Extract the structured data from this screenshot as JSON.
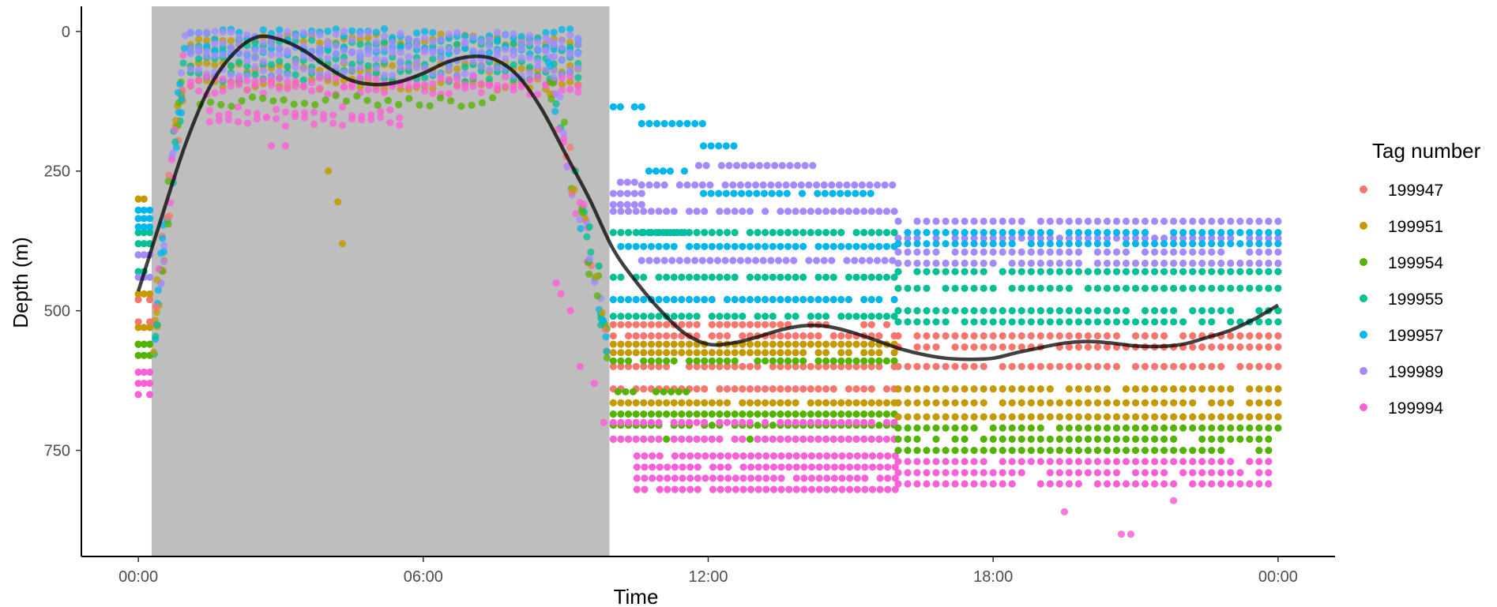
{
  "chart_data": {
    "type": "scatter",
    "xlabel": "Time",
    "ylabel": "Depth (m)",
    "x_unit": "hours",
    "xlim": [
      -1.2,
      25.2
    ],
    "ylim": [
      940,
      -45
    ],
    "y_reversed": true,
    "x_ticks": [
      {
        "value": 0,
        "label": "00:00"
      },
      {
        "value": 6,
        "label": "06:00"
      },
      {
        "value": 12,
        "label": "12:00"
      },
      {
        "value": 18,
        "label": "18:00"
      },
      {
        "value": 24,
        "label": "00:00"
      }
    ],
    "y_ticks": [
      {
        "value": 0,
        "label": "0"
      },
      {
        "value": 250,
        "label": "250"
      },
      {
        "value": 500,
        "label": "500"
      },
      {
        "value": 750,
        "label": "750"
      }
    ],
    "grid": false,
    "legend_position": "right",
    "legend_title": "Tag number",
    "daylight_band": {
      "x_start": 0.28,
      "x_end": 9.92,
      "color": "#bebebe"
    },
    "smooth_line": {
      "color": "#000000",
      "x": [
        0,
        0.5,
        1,
        1.5,
        2,
        2.5,
        3,
        3.5,
        4,
        4.5,
        5,
        5.5,
        6,
        6.5,
        7,
        7.5,
        8,
        8.5,
        9,
        9.5,
        10,
        10.5,
        11,
        11.5,
        12,
        12.5,
        13,
        13.5,
        14,
        14.5,
        15,
        15.5,
        16,
        16.5,
        17,
        17.5,
        18,
        18.5,
        19,
        19.5,
        20,
        20.5,
        21,
        21.5,
        22,
        22.5,
        23,
        23.5,
        24
      ],
      "y": [
        465,
        330,
        200,
        100,
        40,
        10,
        15,
        35,
        65,
        88,
        95,
        90,
        75,
        55,
        45,
        50,
        80,
        140,
        220,
        300,
        390,
        450,
        500,
        540,
        560,
        558,
        548,
        535,
        527,
        528,
        538,
        552,
        567,
        578,
        585,
        587,
        585,
        575,
        566,
        558,
        555,
        558,
        563,
        564,
        560,
        548,
        535,
        515,
        490
      ]
    },
    "series": [
      {
        "name": "199947",
        "color": "#F8766D"
      },
      {
        "name": "199951",
        "color": "#C49A00"
      },
      {
        "name": "199954",
        "color": "#53B400"
      },
      {
        "name": "199955",
        "color": "#00C094"
      },
      {
        "name": "199957",
        "color": "#00B6EB"
      },
      {
        "name": "199989",
        "color": "#A58AFF"
      },
      {
        "name": "199994",
        "color": "#FB61D7"
      }
    ],
    "bands": [
      {
        "s": 0,
        "x0": 0,
        "x1": 0.25,
        "depths": [
          480,
          520,
          560
        ],
        "gap": 0.12
      },
      {
        "s": 1,
        "x0": 0,
        "x1": 0.25,
        "depths": [
          300,
          400,
          470,
          530
        ],
        "gap": 0.12
      },
      {
        "s": 2,
        "x0": 0,
        "x1": 0.25,
        "depths": [
          560,
          580
        ],
        "gap": 0.12
      },
      {
        "s": 3,
        "x0": 0,
        "x1": 0.25,
        "depths": [
          360,
          380,
          430
        ],
        "gap": 0.12
      },
      {
        "s": 4,
        "x0": 0,
        "x1": 0.25,
        "depths": [
          320,
          335,
          350
        ],
        "gap": 0.12
      },
      {
        "s": 5,
        "x0": 0,
        "x1": 0.25,
        "depths": [
          400,
          440
        ],
        "gap": 0.12
      },
      {
        "s": 6,
        "x0": 0,
        "x1": 0.25,
        "depths": [
          610,
          630,
          650
        ],
        "gap": 0.12
      },
      {
        "s": 1,
        "x0": 1.1,
        "x1": 9.4,
        "depths": [
          15,
          65,
          95
        ],
        "gap": 0.17
      },
      {
        "s": 3,
        "x0": 1.1,
        "x1": 9.4,
        "depths": [
          25,
          55,
          80
        ],
        "gap": 0.17
      },
      {
        "s": 4,
        "x0": 1.1,
        "x1": 9.4,
        "depths": [
          5,
          35
        ],
        "gap": 0.17
      },
      {
        "s": 5,
        "x0": 1.1,
        "x1": 9.4,
        "depths": [
          10,
          30,
          45,
          70
        ],
        "gap": 0.17
      },
      {
        "s": 6,
        "x0": 1.1,
        "x1": 9.4,
        "depths": [
          90,
          105
        ],
        "gap": 0.17
      },
      {
        "s": 2,
        "x0": 1.3,
        "x1": 7.5,
        "depths": [
          125
        ],
        "gap": 0.22
      },
      {
        "s": 6,
        "x0": 1.5,
        "x1": 5.5,
        "depths": [
          145,
          160
        ],
        "gap": 0.2
      },
      {
        "s": 5,
        "x0": 10,
        "x1": 10.6,
        "depths": [
          270,
          290,
          310
        ],
        "gap": 0.15
      },
      {
        "s": 4,
        "x0": 10,
        "x1": 10.6,
        "depths": [
          135
        ],
        "gap": 0.15
      },
      {
        "s": 4,
        "x0": 10.6,
        "x1": 11.5,
        "depths": [
          250
        ],
        "gap": 0.15
      },
      {
        "s": 4,
        "x0": 10.6,
        "x1": 11.5,
        "depths": [
          360
        ],
        "gap": 0.15
      },
      {
        "s": 4,
        "x0": 10.6,
        "x1": 11.9,
        "depths": [
          165
        ],
        "gap": 0.16
      },
      {
        "s": 5,
        "x0": 11.8,
        "x1": 14.2,
        "depths": [
          240
        ],
        "gap": 0.16
      },
      {
        "s": 4,
        "x0": 11.9,
        "x1": 12.6,
        "depths": [
          205
        ],
        "gap": 0.16
      },
      {
        "s": 5,
        "x0": 10.6,
        "x1": 16,
        "depths": [
          275,
          410
        ],
        "gap": 0.16
      },
      {
        "s": 4,
        "x0": 11.9,
        "x1": 15.5,
        "depths": [
          290
        ],
        "gap": 0.16
      },
      {
        "s": 5,
        "x0": 10,
        "x1": 16,
        "depths": [
          322
        ],
        "gap": 0.16
      },
      {
        "s": 3,
        "x0": 10,
        "x1": 16,
        "depths": [
          360,
          440,
          510
        ],
        "gap": 0.16
      },
      {
        "s": 4,
        "x0": 10,
        "x1": 16,
        "depths": [
          385,
          480
        ],
        "gap": 0.16
      },
      {
        "s": 0,
        "x0": 10,
        "x1": 16,
        "depths": [
          525,
          545,
          600,
          640
        ],
        "gap": 0.16
      },
      {
        "s": 1,
        "x0": 10,
        "x1": 16,
        "depths": [
          560,
          575,
          665
        ],
        "gap": 0.16
      },
      {
        "s": 2,
        "x0": 10,
        "x1": 16,
        "depths": [
          590,
          685,
          705,
          730
        ],
        "gap": 0.16
      },
      {
        "s": 6,
        "x0": 10,
        "x1": 16,
        "depths": [
          700,
          730
        ],
        "gap": 0.16
      },
      {
        "s": 6,
        "x0": 10.5,
        "x1": 16,
        "depths": [
          760,
          780,
          800,
          820
        ],
        "gap": 0.16
      },
      {
        "s": 2,
        "x0": 10.1,
        "x1": 11.6,
        "depths": [
          645
        ],
        "gap": 0.16
      },
      {
        "s": 5,
        "x0": 16,
        "x1": 24,
        "depths": [
          340,
          370,
          395,
          415
        ],
        "gap": 0.2
      },
      {
        "s": 4,
        "x0": 16,
        "x1": 24,
        "depths": [
          360,
          380
        ],
        "gap": 0.2
      },
      {
        "s": 3,
        "x0": 16,
        "x1": 24,
        "depths": [
          430,
          460,
          500,
          520
        ],
        "gap": 0.2
      },
      {
        "s": 0,
        "x0": 16,
        "x1": 24,
        "depths": [
          545,
          565,
          600
        ],
        "gap": 0.2
      },
      {
        "s": 1,
        "x0": 16,
        "x1": 24,
        "depths": [
          640,
          665,
          690
        ],
        "gap": 0.2
      },
      {
        "s": 2,
        "x0": 16,
        "x1": 24,
        "depths": [
          710,
          730,
          750
        ],
        "gap": 0.2
      },
      {
        "s": 6,
        "x0": 16,
        "x1": 23.8,
        "depths": [
          770,
          790,
          810
        ],
        "gap": 0.2
      }
    ],
    "scatter_points": [
      {
        "s": 1,
        "x": 4,
        "y": 250
      },
      {
        "s": 1,
        "x": 4.2,
        "y": 305
      },
      {
        "s": 1,
        "x": 4.3,
        "y": 380
      },
      {
        "s": 6,
        "x": 2.8,
        "y": 205
      },
      {
        "s": 6,
        "x": 3.1,
        "y": 205
      },
      {
        "s": 6,
        "x": 20.7,
        "y": 900
      },
      {
        "s": 6,
        "x": 20.9,
        "y": 900
      },
      {
        "s": 6,
        "x": 19.5,
        "y": 860
      },
      {
        "s": 6,
        "x": 21.8,
        "y": 840
      },
      {
        "s": 6,
        "x": 8.8,
        "y": 450
      },
      {
        "s": 6,
        "x": 8.9,
        "y": 470
      },
      {
        "s": 6,
        "x": 9.1,
        "y": 500
      },
      {
        "s": 6,
        "x": 9.3,
        "y": 600
      },
      {
        "s": 6,
        "x": 9.6,
        "y": 630
      },
      {
        "s": 6,
        "x": 9.8,
        "y": 700
      },
      {
        "s": 3,
        "x": 9.2,
        "y": 250
      },
      {
        "s": 3,
        "x": 9.5,
        "y": 350
      },
      {
        "s": 3,
        "x": 9.7,
        "y": 420
      }
    ],
    "ramps": [
      {
        "x0": 0.3,
        "x1": 1.0,
        "d0": 560,
        "d1": 30
      },
      {
        "x0": 8.6,
        "x1": 9.9,
        "d0": 40,
        "d1": 560
      }
    ]
  }
}
